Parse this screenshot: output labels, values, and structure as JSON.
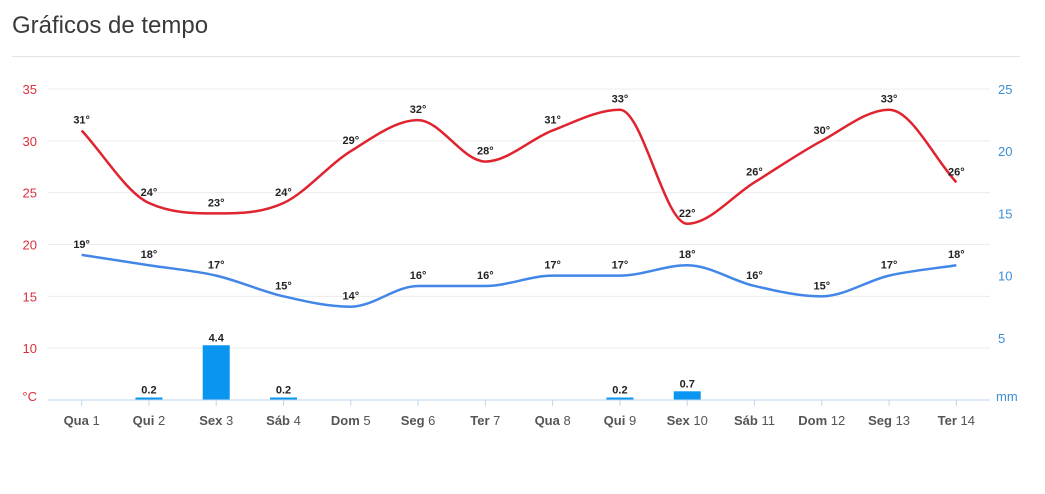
{
  "page": {
    "title": "Gráficos de tempo"
  },
  "chart_data": {
    "type": "line",
    "categories": [
      {
        "day": "Qua",
        "num": "1"
      },
      {
        "day": "Qui",
        "num": "2"
      },
      {
        "day": "Sex",
        "num": "3"
      },
      {
        "day": "Sáb",
        "num": "4"
      },
      {
        "day": "Dom",
        "num": "5"
      },
      {
        "day": "Seg",
        "num": "6"
      },
      {
        "day": "Ter",
        "num": "7"
      },
      {
        "day": "Qua",
        "num": "8"
      },
      {
        "day": "Qui",
        "num": "9"
      },
      {
        "day": "Sex",
        "num": "10"
      },
      {
        "day": "Sáb",
        "num": "11"
      },
      {
        "day": "Dom",
        "num": "12"
      },
      {
        "day": "Seg",
        "num": "13"
      },
      {
        "day": "Ter",
        "num": "14"
      }
    ],
    "series": [
      {
        "kind": "line",
        "axis": "left",
        "color": "#e0242f",
        "values": [
          31,
          24,
          23,
          24,
          29,
          32,
          28,
          31,
          33,
          22,
          26,
          30,
          33,
          26
        ],
        "labels": [
          "31°",
          "24°",
          "23°",
          "24°",
          "29°",
          "32°",
          "28°",
          "31°",
          "33°",
          "22°",
          "26°",
          "30°",
          "33°",
          "26°"
        ]
      },
      {
        "kind": "line",
        "axis": "left",
        "color": "#4286e8",
        "values": [
          19,
          18,
          17,
          15,
          14,
          16,
          16,
          17,
          17,
          18,
          16,
          15,
          17,
          18
        ],
        "labels": [
          "19°",
          "18°",
          "17°",
          "15°",
          "14°",
          "16°",
          "16°",
          "17°",
          "17°",
          "18°",
          "16°",
          "15°",
          "17°",
          "18°"
        ]
      },
      {
        "kind": "bar",
        "axis": "right",
        "color": "#0a96f0",
        "values": [
          0,
          0.2,
          4.4,
          0.2,
          0,
          0,
          0,
          0,
          0.2,
          0.7,
          0,
          0,
          0,
          0
        ],
        "labels": [
          "",
          "0.2",
          "4.4",
          "0.2",
          "",
          "",
          "",
          "",
          "0.2",
          "0.7",
          "",
          "",
          "",
          ""
        ]
      }
    ],
    "left_axis": {
      "unit": "°C",
      "ticks": [
        "10",
        "15",
        "20",
        "25",
        "30",
        "35"
      ],
      "range": [
        5,
        35
      ]
    },
    "right_axis": {
      "unit": "mm",
      "ticks": [
        "5",
        "10",
        "15",
        "20",
        "25"
      ],
      "range": [
        0,
        25
      ]
    },
    "grid": true,
    "colors": {
      "left_axis": "#d9303a",
      "right_axis": "#3a8fd6",
      "grid": "#ececec",
      "baseline": "#bfd6ee"
    }
  }
}
